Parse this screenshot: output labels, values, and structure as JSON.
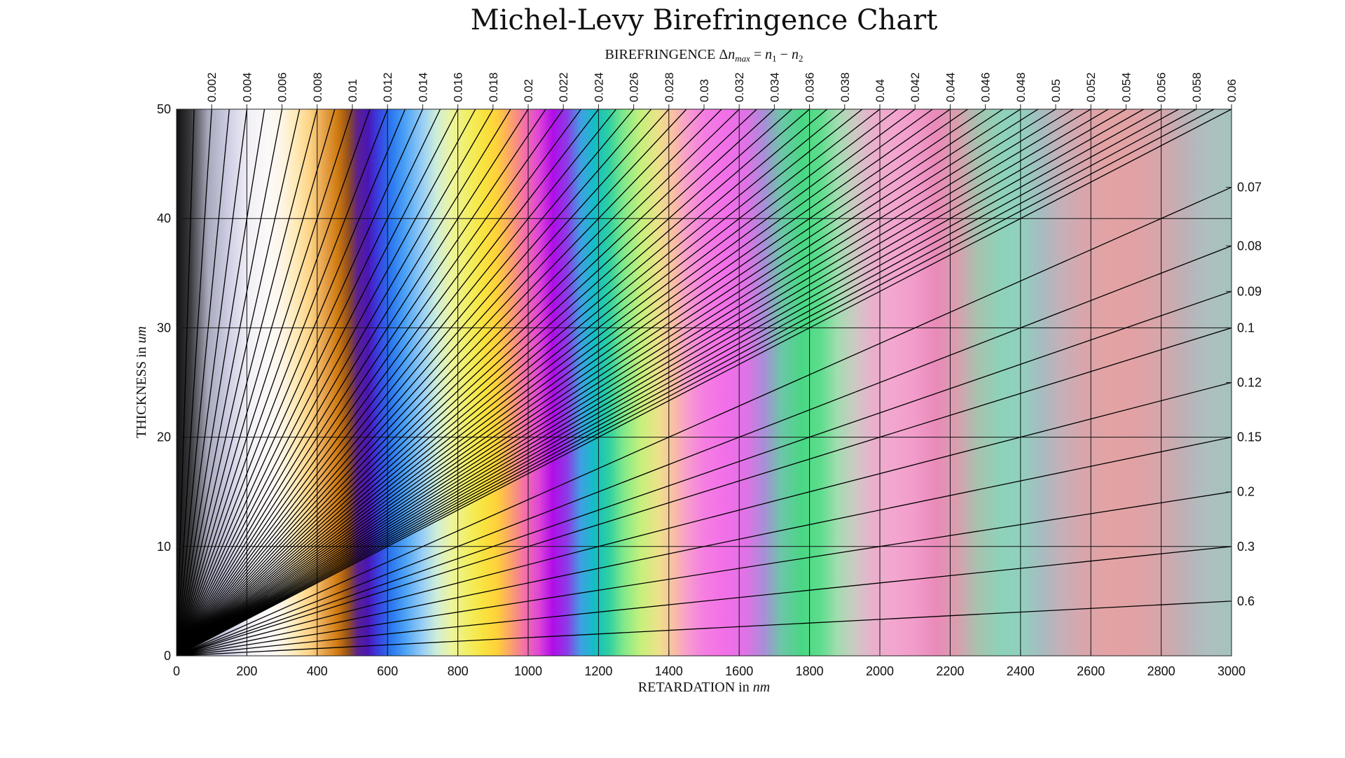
{
  "chart_data": {
    "type": "line",
    "title": "Michel-Levy Birefringence Chart",
    "top_axis_label": {
      "prefix": "BIREFRINGENCE Δ",
      "n": "n",
      "max_sub": "max",
      "eq": " = ",
      "n1": "n",
      "sub1": "1",
      "minus": " − ",
      "n2": "n",
      "sub2": "2"
    },
    "xlabel": {
      "text": "RETARDATION in ",
      "unit": "nm"
    },
    "ylabel": {
      "text": "THICKNESS in ",
      "unit": "um"
    },
    "xlim": [
      0,
      3000
    ],
    "ylim": [
      0,
      50
    ],
    "x_ticks": [
      0,
      200,
      400,
      600,
      800,
      1000,
      1200,
      1400,
      1600,
      1800,
      2000,
      2200,
      2400,
      2600,
      2800,
      3000
    ],
    "y_ticks": [
      0,
      10,
      20,
      30,
      40,
      50
    ],
    "grid": true,
    "x_units": "nm",
    "y_units": "um",
    "relation": "retardation = 1000 * birefringence * thickness",
    "top_birefringence_ticks": [
      "0.002",
      "0.004",
      "0.006",
      "0.008",
      "0.01",
      "0.012",
      "0.014",
      "0.016",
      "0.018",
      "0.02",
      "0.022",
      "0.024",
      "0.026",
      "0.028",
      "0.03",
      "0.032",
      "0.034",
      "0.036",
      "0.038",
      "0.04",
      "0.042",
      "0.044",
      "0.046",
      "0.048",
      "0.05",
      "0.052",
      "0.054",
      "0.056",
      "0.058",
      "0.06"
    ],
    "right_birefringence_ticks": [
      "0.07",
      "0.08",
      "0.09",
      "0.1",
      "0.12",
      "0.15",
      "0.2",
      "0.3",
      "0.6"
    ],
    "series": [
      {
        "values": [
          0.001,
          0.002,
          0.003,
          0.004,
          0.005,
          0.006,
          0.007,
          0.008,
          0.009,
          0.01,
          0.011,
          0.012,
          0.013,
          0.014,
          0.015,
          0.016,
          0.017,
          0.018,
          0.019,
          0.02,
          0.021,
          0.022,
          0.023,
          0.024,
          0.025,
          0.026,
          0.027,
          0.028,
          0.029,
          0.03,
          0.031,
          0.032,
          0.033,
          0.034,
          0.035,
          0.036,
          0.037,
          0.038,
          0.039,
          0.04,
          0.041,
          0.042,
          0.043,
          0.044,
          0.045,
          0.046,
          0.047,
          0.048,
          0.049,
          0.05,
          0.051,
          0.052,
          0.053,
          0.054,
          0.055,
          0.056,
          0.057,
          0.058,
          0.059,
          0.06,
          0.07,
          0.08,
          0.09,
          0.1,
          0.12,
          0.15,
          0.2,
          0.3,
          0.6
        ]
      }
    ],
    "color_bands": [
      {
        "x": 0,
        "color": "#111111"
      },
      {
        "x": 40,
        "color": "#3a3a3e"
      },
      {
        "x": 90,
        "color": "#a9a9bd"
      },
      {
        "x": 150,
        "color": "#cfd0e5"
      },
      {
        "x": 210,
        "color": "#f4f1f6"
      },
      {
        "x": 260,
        "color": "#fbf9fa"
      },
      {
        "x": 300,
        "color": "#fdf5e6"
      },
      {
        "x": 340,
        "color": "#ffe9b5"
      },
      {
        "x": 380,
        "color": "#fdd283"
      },
      {
        "x": 420,
        "color": "#e6a24a"
      },
      {
        "x": 460,
        "color": "#cd780f"
      },
      {
        "x": 490,
        "color": "#8f4d20"
      },
      {
        "x": 515,
        "color": "#5a2090"
      },
      {
        "x": 545,
        "color": "#4a16b6"
      },
      {
        "x": 570,
        "color": "#3b3bdc"
      },
      {
        "x": 610,
        "color": "#2a77ee"
      },
      {
        "x": 650,
        "color": "#4da2f5"
      },
      {
        "x": 700,
        "color": "#99cff5"
      },
      {
        "x": 740,
        "color": "#cfeed8"
      },
      {
        "x": 780,
        "color": "#ecf4a0"
      },
      {
        "x": 830,
        "color": "#f2ee62"
      },
      {
        "x": 870,
        "color": "#f8e440"
      },
      {
        "x": 910,
        "color": "#ffd23a"
      },
      {
        "x": 950,
        "color": "#fba36a"
      },
      {
        "x": 990,
        "color": "#f36fa9"
      },
      {
        "x": 1030,
        "color": "#df46d7"
      },
      {
        "x": 1070,
        "color": "#b00de8"
      },
      {
        "x": 1110,
        "color": "#8c3be6"
      },
      {
        "x": 1150,
        "color": "#3fa0e2"
      },
      {
        "x": 1190,
        "color": "#12bfc4"
      },
      {
        "x": 1230,
        "color": "#30d0a0"
      },
      {
        "x": 1270,
        "color": "#7fe88a"
      },
      {
        "x": 1320,
        "color": "#c6f07c"
      },
      {
        "x": 1370,
        "color": "#ece28a"
      },
      {
        "x": 1410,
        "color": "#f9c1a0"
      },
      {
        "x": 1450,
        "color": "#f89fcb"
      },
      {
        "x": 1500,
        "color": "#f57ee2"
      },
      {
        "x": 1560,
        "color": "#f26fe8"
      },
      {
        "x": 1620,
        "color": "#df72e6"
      },
      {
        "x": 1670,
        "color": "#a98ed8"
      },
      {
        "x": 1720,
        "color": "#6cc6a8"
      },
      {
        "x": 1780,
        "color": "#48d883"
      },
      {
        "x": 1830,
        "color": "#5cdd8c"
      },
      {
        "x": 1880,
        "color": "#a2ddb0"
      },
      {
        "x": 1930,
        "color": "#cdc9c3"
      },
      {
        "x": 1980,
        "color": "#e9b0cc"
      },
      {
        "x": 2040,
        "color": "#f3a6cf"
      },
      {
        "x": 2100,
        "color": "#f19bca"
      },
      {
        "x": 2160,
        "color": "#e98ab9"
      },
      {
        "x": 2220,
        "color": "#d99fae"
      },
      {
        "x": 2280,
        "color": "#a7c2ae"
      },
      {
        "x": 2340,
        "color": "#8ed2b8"
      },
      {
        "x": 2400,
        "color": "#8fd0bf"
      },
      {
        "x": 2460,
        "color": "#a6bcbf"
      },
      {
        "x": 2520,
        "color": "#c6afb8"
      },
      {
        "x": 2580,
        "color": "#d9a5ab"
      },
      {
        "x": 2640,
        "color": "#e3a3a4"
      },
      {
        "x": 2720,
        "color": "#e2a1a4"
      },
      {
        "x": 2800,
        "color": "#d5a6ab"
      },
      {
        "x": 2870,
        "color": "#bcb1b7"
      },
      {
        "x": 2930,
        "color": "#aebfc0"
      },
      {
        "x": 3000,
        "color": "#a5c3bd"
      }
    ]
  }
}
